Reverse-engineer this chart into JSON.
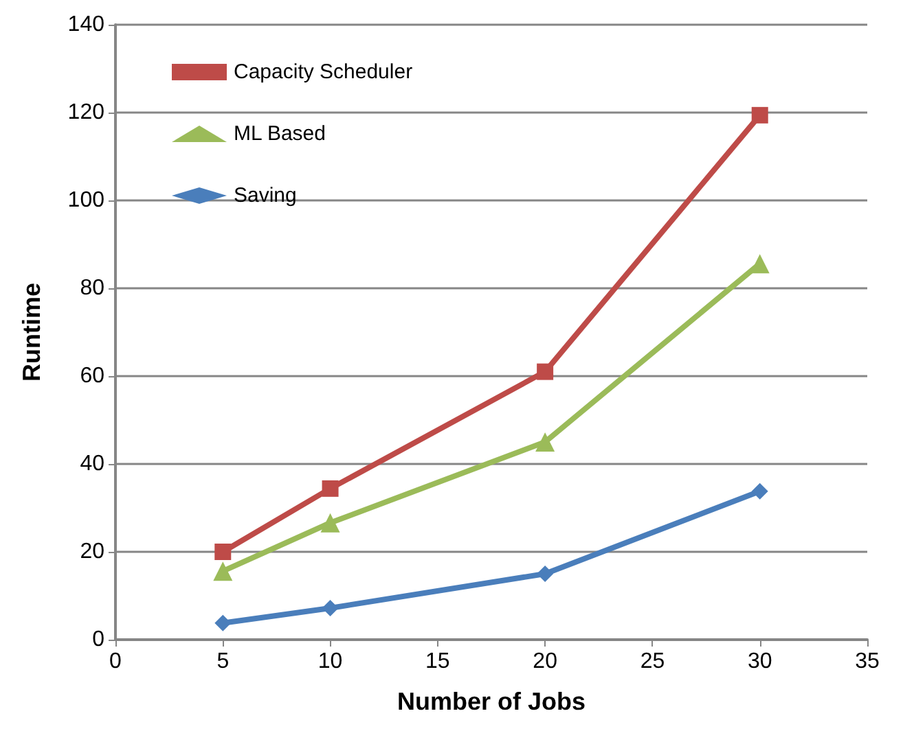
{
  "chart_data": {
    "type": "line",
    "xlabel": "Number of Jobs",
    "ylabel": "Runtime",
    "x": [
      5,
      10,
      20,
      30
    ],
    "series": [
      {
        "name": "Capacity Scheduler",
        "color": "#be4b48",
        "marker": "square",
        "values": [
          20,
          34.4,
          61,
          119.4
        ]
      },
      {
        "name": "ML Based",
        "color": "#9bbb59",
        "marker": "triangle",
        "values": [
          15.6,
          26.6,
          45,
          85.6
        ]
      },
      {
        "name": "Saving",
        "color": "#4a7ebb",
        "marker": "diamond",
        "values": [
          3.8,
          7.2,
          15,
          33.8
        ]
      }
    ],
    "xlim": [
      0,
      35
    ],
    "xticks": [
      0,
      5,
      10,
      15,
      20,
      25,
      30,
      35
    ],
    "ylim": [
      0,
      140
    ],
    "yticks": [
      0,
      20,
      40,
      60,
      80,
      100,
      120,
      140
    ],
    "grid": "y",
    "legend": "top left",
    "line_style": "solid"
  }
}
